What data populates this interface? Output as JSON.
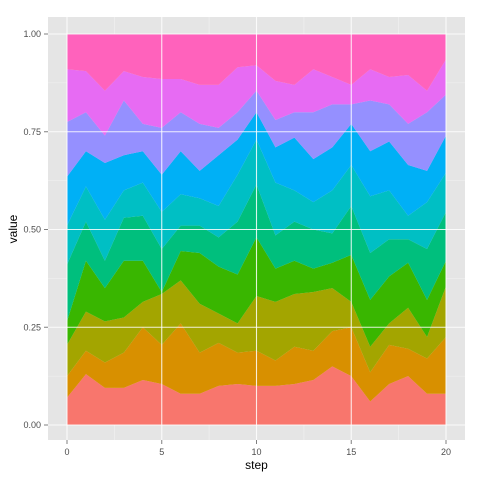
{
  "chart_data": {
    "type": "area",
    "stacked": "fill",
    "xlabel": "step",
    "ylabel": "value",
    "xlim": [
      0,
      20
    ],
    "ylim": [
      0,
      1
    ],
    "x_ticks": [
      0,
      5,
      10,
      15,
      20
    ],
    "x_tick_labels": [
      "0",
      "5",
      "10",
      "15",
      "20"
    ],
    "y_ticks": [
      0,
      0.25,
      0.5,
      0.75,
      1
    ],
    "y_tick_labels": [
      "0.00",
      "0.25",
      "0.50",
      "0.75",
      "1.00"
    ],
    "grid": true,
    "legend": "none",
    "x": [
      0,
      1,
      2,
      3,
      4,
      5,
      6,
      7,
      8,
      9,
      10,
      11,
      12,
      13,
      14,
      15,
      16,
      17,
      18,
      19,
      20
    ],
    "layer_colors": [
      "#F8766D",
      "#D89000",
      "#A3A500",
      "#39B600",
      "#00BF7D",
      "#00BFC4",
      "#00B0F6",
      "#9590FF",
      "#E76BF3",
      "#FF62BC"
    ],
    "boundaries": [
      [
        0.07,
        0.13,
        0.095,
        0.095,
        0.115,
        0.105,
        0.08,
        0.08,
        0.1,
        0.105,
        0.1,
        0.1,
        0.105,
        0.115,
        0.15,
        0.125,
        0.06,
        0.105,
        0.125,
        0.08,
        0.08
      ],
      [
        0.125,
        0.19,
        0.16,
        0.185,
        0.25,
        0.205,
        0.26,
        0.185,
        0.21,
        0.185,
        0.19,
        0.165,
        0.2,
        0.19,
        0.24,
        0.25,
        0.135,
        0.205,
        0.195,
        0.17,
        0.225
      ],
      [
        0.205,
        0.29,
        0.265,
        0.275,
        0.315,
        0.335,
        0.37,
        0.31,
        0.285,
        0.26,
        0.33,
        0.315,
        0.335,
        0.34,
        0.35,
        0.315,
        0.2,
        0.26,
        0.3,
        0.225,
        0.355
      ],
      [
        0.265,
        0.42,
        0.35,
        0.42,
        0.42,
        0.34,
        0.445,
        0.44,
        0.405,
        0.385,
        0.48,
        0.4,
        0.42,
        0.4,
        0.415,
        0.435,
        0.32,
        0.38,
        0.415,
        0.32,
        0.42
      ],
      [
        0.41,
        0.52,
        0.42,
        0.53,
        0.535,
        0.45,
        0.51,
        0.51,
        0.48,
        0.52,
        0.615,
        0.485,
        0.52,
        0.5,
        0.49,
        0.56,
        0.44,
        0.475,
        0.475,
        0.45,
        0.545
      ],
      [
        0.51,
        0.61,
        0.525,
        0.6,
        0.62,
        0.545,
        0.59,
        0.58,
        0.56,
        0.64,
        0.73,
        0.62,
        0.6,
        0.57,
        0.6,
        0.665,
        0.585,
        0.6,
        0.535,
        0.57,
        0.645
      ],
      [
        0.635,
        0.7,
        0.67,
        0.69,
        0.7,
        0.64,
        0.7,
        0.65,
        0.69,
        0.73,
        0.8,
        0.71,
        0.735,
        0.68,
        0.71,
        0.77,
        0.7,
        0.725,
        0.665,
        0.65,
        0.74
      ],
      [
        0.775,
        0.8,
        0.74,
        0.83,
        0.77,
        0.76,
        0.8,
        0.77,
        0.76,
        0.8,
        0.855,
        0.78,
        0.8,
        0.8,
        0.82,
        0.82,
        0.83,
        0.82,
        0.77,
        0.8,
        0.845
      ],
      [
        0.91,
        0.905,
        0.855,
        0.905,
        0.89,
        0.885,
        0.885,
        0.87,
        0.87,
        0.915,
        0.92,
        0.88,
        0.87,
        0.91,
        0.89,
        0.87,
        0.91,
        0.89,
        0.895,
        0.855,
        0.935
      ],
      [
        1,
        1,
        1,
        1,
        1,
        1,
        1,
        1,
        1,
        1,
        1,
        1,
        1,
        1,
        1,
        1,
        1,
        1,
        1,
        1,
        1
      ]
    ]
  }
}
